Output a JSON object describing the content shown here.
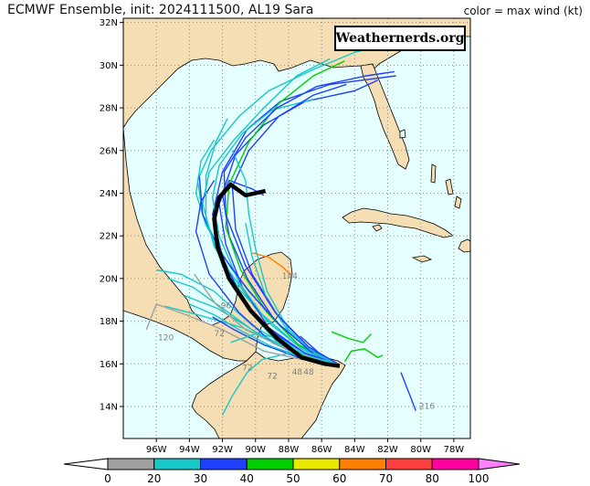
{
  "title": "ECMWF Ensemble, init: 2024111500, AL19 Sara",
  "subtitle": "color = max wind (kt)",
  "brand": "Weathernerds.org",
  "map": {
    "lon_range": [
      -98,
      -77
    ],
    "lat_range": [
      12.5,
      32.2
    ],
    "lat_ticks": [
      "14N",
      "16N",
      "18N",
      "20N",
      "22N",
      "24N",
      "26N",
      "28N",
      "30N",
      "32N"
    ],
    "lat_values": [
      14,
      16,
      18,
      20,
      22,
      24,
      26,
      28,
      30,
      32
    ],
    "lon_ticks": [
      "96W",
      "94W",
      "92W",
      "90W",
      "88W",
      "86W",
      "84W",
      "82W",
      "80W",
      "78W"
    ],
    "lon_values": [
      -96,
      -94,
      -92,
      -90,
      -88,
      -86,
      -84,
      -82,
      -80,
      -78
    ],
    "colors": {
      "ocean": "#e6ffff",
      "land": "#f5deb3",
      "coast": "#000000",
      "grid": "#8a8a8a"
    }
  },
  "colorbar": {
    "labels": [
      "0",
      "20",
      "30",
      "40",
      "50",
      "60",
      "70",
      "80",
      "100"
    ],
    "colors": [
      "#a0a0a0",
      "#18c8c8",
      "#2040ff",
      "#00d000",
      "#e8e800",
      "#ff8000",
      "#ff4040",
      "#ff00a0"
    ],
    "min_arrow_color": "#ffffff",
    "max_arrow_color": "#ff80ff"
  },
  "tracks": {
    "mean": {
      "color": "#000000",
      "points": [
        [
          -84.9,
          15.9
        ],
        [
          -85.8,
          16.0
        ],
        [
          -87.2,
          16.3
        ],
        [
          -88.7,
          17.2
        ],
        [
          -90.3,
          18.5
        ],
        [
          -91.6,
          20.0
        ],
        [
          -92.3,
          21.5
        ],
        [
          -92.5,
          22.8
        ],
        [
          -92.2,
          23.8
        ],
        [
          -91.5,
          24.4
        ],
        [
          -90.6,
          23.9
        ],
        [
          -89.4,
          24.1
        ]
      ]
    },
    "members": [
      {
        "c": "#18c8c8",
        "p": [
          [
            -85,
            16
          ],
          [
            -87,
            16.6
          ],
          [
            -89,
            17.8
          ],
          [
            -91,
            19.5
          ],
          [
            -92.5,
            21.5
          ],
          [
            -93.2,
            23.5
          ],
          [
            -92.8,
            25
          ],
          [
            -91.3,
            26.5
          ],
          [
            -89.5,
            28
          ],
          [
            -87.5,
            29.5
          ],
          [
            -85.5,
            30.3
          ]
        ]
      },
      {
        "c": "#18c8c8",
        "p": [
          [
            -85,
            16
          ],
          [
            -87.3,
            16.8
          ],
          [
            -89.3,
            18.4
          ],
          [
            -91.5,
            20.5
          ],
          [
            -93,
            22.5
          ],
          [
            -93.6,
            24
          ],
          [
            -93.3,
            25.5
          ],
          [
            -92.5,
            26.5
          ]
        ]
      },
      {
        "c": "#2040ff",
        "p": [
          [
            -85,
            16
          ],
          [
            -87,
            16.5
          ],
          [
            -89,
            17.5
          ],
          [
            -90.8,
            19
          ],
          [
            -92,
            21
          ],
          [
            -92.6,
            23
          ],
          [
            -92,
            25
          ],
          [
            -90.5,
            27
          ],
          [
            -88.5,
            28.3
          ],
          [
            -85.5,
            29.1
          ],
          [
            -81.5,
            29.5
          ]
        ]
      },
      {
        "c": "#2040ff",
        "p": [
          [
            -85,
            16
          ],
          [
            -86.8,
            16.7
          ],
          [
            -88.8,
            18
          ],
          [
            -90.5,
            20
          ],
          [
            -91.6,
            22
          ],
          [
            -92,
            24
          ],
          [
            -91.2,
            25.8
          ],
          [
            -89.5,
            27.2
          ],
          [
            -87,
            28.3
          ],
          [
            -84,
            28.8
          ],
          [
            -82.6,
            29.3
          ]
        ]
      },
      {
        "c": "#18c8c8",
        "p": [
          [
            -85,
            16
          ],
          [
            -87.5,
            16.9
          ],
          [
            -90,
            18.6
          ],
          [
            -92,
            20.8
          ],
          [
            -93.2,
            23
          ],
          [
            -93.5,
            24.6
          ],
          [
            -92.7,
            26
          ],
          [
            -91,
            27.6
          ],
          [
            -89.2,
            28.8
          ],
          [
            -86.5,
            29.8
          ],
          [
            -84,
            30.6
          ],
          [
            -82,
            31
          ]
        ]
      },
      {
        "c": "#18c8c8",
        "p": [
          [
            -85,
            16
          ],
          [
            -87.6,
            16.6
          ],
          [
            -90.2,
            17.8
          ],
          [
            -92.5,
            19.4
          ],
          [
            -94.5,
            20.2
          ],
          [
            -96,
            20.4
          ]
        ]
      },
      {
        "c": "#18c8c8",
        "p": [
          [
            -85,
            16
          ],
          [
            -88,
            16.7
          ],
          [
            -90.8,
            17.7
          ],
          [
            -93.5,
            18.3
          ],
          [
            -95.5,
            18.7
          ]
        ]
      },
      {
        "c": "#18c8c8",
        "p": [
          [
            -85,
            16
          ],
          [
            -87.2,
            16.4
          ],
          [
            -89.5,
            17.2
          ],
          [
            -91.8,
            18.5
          ],
          [
            -93.8,
            19.6
          ],
          [
            -95.3,
            20
          ]
        ]
      },
      {
        "c": "#2040ff",
        "p": [
          [
            -85,
            16
          ],
          [
            -87.4,
            16.3
          ],
          [
            -89.5,
            16.9
          ],
          [
            -91.3,
            17.6
          ],
          [
            -92.6,
            18.2
          ]
        ]
      },
      {
        "c": "#18c8c8",
        "p": [
          [
            -85,
            16
          ],
          [
            -86.5,
            16.2
          ],
          [
            -88,
            16.5
          ],
          [
            -89.6,
            16.2
          ],
          [
            -90.5,
            15.6
          ],
          [
            -91.4,
            14.5
          ],
          [
            -92,
            13.6
          ]
        ]
      },
      {
        "c": "#18c8c8",
        "p": [
          [
            -85,
            16
          ],
          [
            -87,
            16.4
          ],
          [
            -88.5,
            17.2
          ],
          [
            -90,
            17.4
          ],
          [
            -91.5,
            17
          ]
        ]
      },
      {
        "c": "#2040ff",
        "p": [
          [
            -85,
            16
          ],
          [
            -87,
            16.5
          ],
          [
            -89.2,
            17.7
          ],
          [
            -90.8,
            19.6
          ],
          [
            -91.8,
            21.6
          ],
          [
            -92.2,
            23.5
          ],
          [
            -91.6,
            24.6
          ],
          [
            -90.2,
            24.2
          ],
          [
            -89.5,
            23.9
          ]
        ]
      },
      {
        "c": "#18c8c8",
        "p": [
          [
            -85,
            16
          ],
          [
            -87.2,
            16.7
          ],
          [
            -89.3,
            18
          ],
          [
            -91,
            19.8
          ],
          [
            -92.2,
            22
          ],
          [
            -92.6,
            23.8
          ],
          [
            -92.2,
            25.3
          ],
          [
            -90.8,
            26.8
          ],
          [
            -89,
            27.9
          ],
          [
            -86.5,
            28.4
          ]
        ]
      },
      {
        "c": "#2040ff",
        "p": [
          [
            -85,
            16
          ],
          [
            -87,
            16.3
          ],
          [
            -89,
            17
          ],
          [
            -91,
            18.4
          ],
          [
            -92.8,
            20.2
          ],
          [
            -93.6,
            22.2
          ],
          [
            -93.3,
            23.6
          ],
          [
            -92.5,
            24.6
          ]
        ]
      },
      {
        "c": "#00d000",
        "p": [
          [
            -85,
            16
          ],
          [
            -87.4,
            16.9
          ],
          [
            -89.3,
            18.4
          ],
          [
            -90.9,
            20.4
          ],
          [
            -91.8,
            22.4
          ],
          [
            -91.6,
            24.4
          ],
          [
            -90.4,
            26.4
          ],
          [
            -88.6,
            28.2
          ],
          [
            -86.5,
            29.5
          ],
          [
            -84.6,
            30.2
          ]
        ]
      },
      {
        "c": "#2040ff",
        "p": [
          [
            -85,
            16
          ],
          [
            -86.8,
            16.8
          ],
          [
            -88.6,
            18.2
          ],
          [
            -90.2,
            20.2
          ],
          [
            -91.2,
            22.3
          ],
          [
            -91.4,
            24.3
          ],
          [
            -90.4,
            26
          ],
          [
            -88.6,
            27.6
          ],
          [
            -86.5,
            28.6
          ],
          [
            -84.5,
            29.1
          ]
        ]
      },
      {
        "c": "#18c8c8",
        "p": [
          [
            -85,
            16
          ],
          [
            -86.5,
            16.5
          ],
          [
            -88,
            17.5
          ],
          [
            -89.3,
            19
          ],
          [
            -90.2,
            21
          ],
          [
            -90.6,
            22.6
          ]
        ]
      },
      {
        "c": "#18c8c8",
        "p": [
          [
            -85,
            16
          ],
          [
            -87,
            16.3
          ],
          [
            -89,
            16.8
          ],
          [
            -91,
            17.6
          ],
          [
            -92.5,
            18.3
          ],
          [
            -94,
            18.8
          ]
        ]
      },
      {
        "c": "#2040ff",
        "p": [
          [
            -85,
            16
          ],
          [
            -86.7,
            16.6
          ],
          [
            -88.5,
            17.8
          ],
          [
            -90.4,
            19.4
          ],
          [
            -92.1,
            21.2
          ],
          [
            -93.2,
            23
          ],
          [
            -93.4,
            24.8
          ]
        ]
      },
      {
        "c": "#18c8c8",
        "p": [
          [
            -85,
            16
          ],
          [
            -87.5,
            16.5
          ],
          [
            -90,
            17.5
          ],
          [
            -92.3,
            18.6
          ],
          [
            -94.3,
            19.2
          ]
        ]
      },
      {
        "c": "#a0a0a0",
        "p": [
          [
            -85,
            16
          ],
          [
            -87.2,
            16.2
          ],
          [
            -89.5,
            16.6
          ],
          [
            -92,
            17.6
          ],
          [
            -94.2,
            18.3
          ],
          [
            -96,
            18.8
          ],
          [
            -96.6,
            17.6
          ]
        ]
      },
      {
        "c": "#a0a0a0",
        "p": [
          [
            -85,
            16
          ],
          [
            -86.7,
            16.3
          ],
          [
            -88.4,
            16.8
          ],
          [
            -90.6,
            17.6
          ],
          [
            -92.4,
            18.8
          ],
          [
            -93.7,
            20.2
          ]
        ]
      },
      {
        "c": "#ff8000",
        "p": [
          [
            -90.2,
            21.2
          ],
          [
            -89.2,
            21
          ],
          [
            -88.3,
            20.5
          ],
          [
            -87.8,
            20.1
          ]
        ]
      },
      {
        "c": "#2040ff",
        "p": [
          [
            -85,
            16
          ],
          [
            -86,
            16.4
          ],
          [
            -87.3,
            17.3
          ]
        ]
      },
      {
        "c": "#00d000",
        "p": [
          [
            -84.6,
            16.1
          ],
          [
            -84.2,
            16.6
          ],
          [
            -83.4,
            16.7
          ],
          [
            -82.6,
            16.3
          ],
          [
            -82.3,
            16.4
          ]
        ]
      },
      {
        "c": "#00d000",
        "p": [
          [
            -85.4,
            17.5
          ],
          [
            -84.4,
            17.2
          ],
          [
            -83.5,
            17
          ],
          [
            -83,
            17.4
          ]
        ]
      },
      {
        "c": "#2040ff",
        "p": [
          [
            -81.2,
            15.6
          ],
          [
            -80.9,
            15
          ],
          [
            -80.6,
            14.4
          ],
          [
            -80.3,
            13.8
          ]
        ]
      },
      {
        "c": "#18c8c8",
        "p": [
          [
            -85,
            16
          ],
          [
            -86.4,
            16.5
          ],
          [
            -88,
            17.6
          ],
          [
            -89.3,
            19.4
          ],
          [
            -90,
            21.4
          ],
          [
            -90.4,
            23
          ],
          [
            -90.6,
            24.6
          ],
          [
            -91.4,
            26
          ]
        ]
      },
      {
        "c": "#2040ff",
        "p": [
          [
            -85,
            16
          ],
          [
            -86.8,
            16.8
          ],
          [
            -88.8,
            18.4
          ],
          [
            -90.6,
            20.6
          ],
          [
            -91.8,
            23
          ],
          [
            -91.9,
            25
          ],
          [
            -90.6,
            26.6
          ],
          [
            -88.7,
            28
          ],
          [
            -86.3,
            29
          ],
          [
            -83.3,
            29.5
          ],
          [
            -81.6,
            29.7
          ]
        ]
      },
      {
        "c": "#18c8c8",
        "p": [
          [
            -85,
            16
          ],
          [
            -86.9,
            16.3
          ],
          [
            -88.8,
            17.1
          ],
          [
            -90.5,
            18.6
          ],
          [
            -92,
            20.6
          ],
          [
            -93,
            22.8
          ],
          [
            -93,
            24.8
          ],
          [
            -92.4,
            26.4
          ],
          [
            -91.7,
            27.5
          ]
        ]
      }
    ]
  },
  "labels": [
    {
      "t": "120",
      "lon": -95.9,
      "lat": 17.1
    },
    {
      "t": "72",
      "lon": -92.5,
      "lat": 17.3
    },
    {
      "t": "72",
      "lon": -89.3,
      "lat": 15.3
    },
    {
      "t": "144",
      "lon": -88.4,
      "lat": 20
    },
    {
      "t": "48",
      "lon": -87.8,
      "lat": 15.5
    },
    {
      "t": "48",
      "lon": -87.1,
      "lat": 15.5
    },
    {
      "t": "216",
      "lon": -80.1,
      "lat": 13.9
    },
    {
      "t": "72",
      "lon": -90.8,
      "lat": 15.7
    },
    {
      "t": "96",
      "lon": -92.1,
      "lat": 18.6
    }
  ]
}
